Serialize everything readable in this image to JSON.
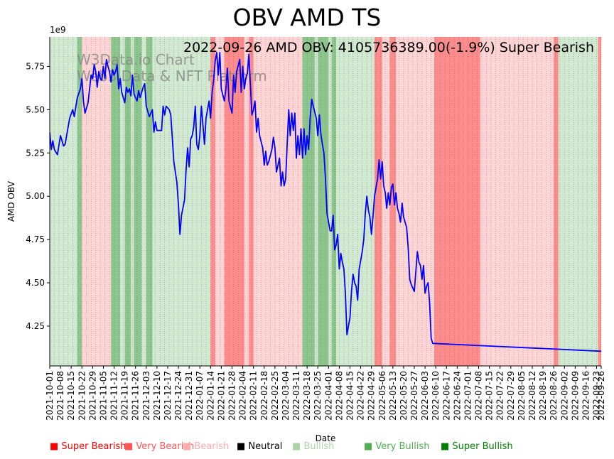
{
  "chart_data": {
    "type": "line",
    "title": "OBV AMD TS",
    "annotation": "2022-09-26 AMD OBV: 4105736389.00(-1.9%) Super Bearish",
    "watermark": [
      "W3Data.io Chart",
      "Web3 Data & NFT Platform"
    ],
    "xlabel": "Date",
    "ylabel": "AMD OBV",
    "y_multiplier": "1e9",
    "ylim": [
      4.02,
      5.92
    ],
    "xlim": [
      0,
      360
    ],
    "yticks": [
      "4.25",
      "4.50",
      "4.75",
      "5.00",
      "5.25",
      "5.50",
      "5.75"
    ],
    "ytick_values": [
      4.25,
      4.5,
      4.75,
      5.0,
      5.25,
      5.5,
      5.75
    ],
    "xtick_labels": [
      "2021-10-01",
      "2021-10-08",
      "2021-10-15",
      "2021-10-22",
      "2021-10-29",
      "2021-11-05",
      "2021-11-12",
      "2021-11-19",
      "2021-11-26",
      "2021-12-03",
      "2021-12-10",
      "2021-12-17",
      "2021-12-24",
      "2021-12-31",
      "2022-01-07",
      "2022-01-14",
      "2022-01-21",
      "2022-01-28",
      "2022-02-04",
      "2022-02-11",
      "2022-02-18",
      "2022-02-25",
      "2022-03-04",
      "2022-03-11",
      "2022-03-18",
      "2022-03-25",
      "2022-04-01",
      "2022-04-08",
      "2022-04-15",
      "2022-04-22",
      "2022-04-29",
      "2022-05-06",
      "2022-05-13",
      "2022-05-20",
      "2022-05-27",
      "2022-06-03",
      "2022-06-10",
      "2022-06-17",
      "2022-06-24",
      "2022-07-01",
      "2022-07-08",
      "2022-07-15",
      "2022-07-22",
      "2022-07-29",
      "2022-08-05",
      "2022-08-12",
      "2022-08-19",
      "2022-08-26",
      "2022-09-02",
      "2022-09-09",
      "2022-09-16",
      "2022-09-23",
      "2022-09-26"
    ],
    "xtick_days": [
      0,
      7,
      14,
      21,
      28,
      35,
      42,
      49,
      56,
      63,
      70,
      77,
      84,
      91,
      98,
      105,
      112,
      119,
      126,
      133,
      140,
      147,
      154,
      161,
      168,
      175,
      182,
      189,
      196,
      203,
      210,
      217,
      224,
      231,
      238,
      245,
      252,
      259,
      266,
      273,
      280,
      287,
      294,
      301,
      308,
      315,
      322,
      329,
      336,
      343,
      350,
      357,
      360
    ],
    "series": [
      {
        "name": "AMD OBV",
        "color": "#0000ff",
        "points": [
          [
            0,
            5.37
          ],
          [
            1,
            5.27
          ],
          [
            2,
            5.32
          ],
          [
            3,
            5.27
          ],
          [
            5,
            5.24
          ],
          [
            7,
            5.35
          ],
          [
            9,
            5.29
          ],
          [
            10,
            5.3
          ],
          [
            11,
            5.35
          ],
          [
            13,
            5.45
          ],
          [
            15,
            5.5
          ],
          [
            16,
            5.46
          ],
          [
            18,
            5.57
          ],
          [
            20,
            5.62
          ],
          [
            21,
            5.68
          ],
          [
            22,
            5.55
          ],
          [
            23,
            5.48
          ],
          [
            25,
            5.54
          ],
          [
            27,
            5.7
          ],
          [
            28,
            5.68
          ],
          [
            29,
            5.76
          ],
          [
            30,
            5.72
          ],
          [
            31,
            5.63
          ],
          [
            32,
            5.72
          ],
          [
            33,
            5.68
          ],
          [
            34,
            5.67
          ],
          [
            35,
            5.75
          ],
          [
            36,
            5.68
          ],
          [
            37,
            5.79
          ],
          [
            38,
            5.75
          ],
          [
            39,
            5.72
          ],
          [
            40,
            5.66
          ],
          [
            41,
            5.73
          ],
          [
            42,
            5.7
          ],
          [
            43,
            5.72
          ],
          [
            44,
            5.76
          ],
          [
            45,
            5.62
          ],
          [
            46,
            5.68
          ],
          [
            47,
            5.6
          ],
          [
            49,
            5.54
          ],
          [
            50,
            5.63
          ],
          [
            51,
            5.6
          ],
          [
            52,
            5.62
          ],
          [
            53,
            5.58
          ],
          [
            54,
            5.7
          ],
          [
            55,
            5.59
          ],
          [
            56,
            5.57
          ],
          [
            57,
            5.55
          ],
          [
            58,
            5.61
          ],
          [
            59,
            5.57
          ],
          [
            61,
            5.63
          ],
          [
            62,
            5.65
          ],
          [
            63,
            5.52
          ],
          [
            65,
            5.46
          ],
          [
            66,
            5.48
          ],
          [
            67,
            5.5
          ],
          [
            68,
            5.37
          ],
          [
            69,
            5.43
          ],
          [
            70,
            5.38
          ],
          [
            73,
            5.38
          ],
          [
            74,
            5.52
          ],
          [
            75,
            5.47
          ],
          [
            76,
            5.52
          ],
          [
            78,
            5.5
          ],
          [
            79,
            5.47
          ],
          [
            81,
            5.2
          ],
          [
            83,
            5.08
          ],
          [
            84,
            4.95
          ],
          [
            85,
            4.78
          ],
          [
            86,
            4.89
          ],
          [
            88,
            4.98
          ],
          [
            89,
            5.15
          ],
          [
            90,
            5.28
          ],
          [
            91,
            5.17
          ],
          [
            92,
            5.33
          ],
          [
            93,
            5.35
          ],
          [
            94,
            5.4
          ],
          [
            95,
            5.52
          ],
          [
            96,
            5.3
          ],
          [
            97,
            5.27
          ],
          [
            98,
            5.35
          ],
          [
            99,
            5.52
          ],
          [
            101,
            5.3
          ],
          [
            102,
            5.45
          ],
          [
            104,
            5.55
          ],
          [
            105,
            5.45
          ],
          [
            106,
            5.6
          ],
          [
            107,
            5.67
          ],
          [
            108,
            5.78
          ],
          [
            109,
            5.83
          ],
          [
            110,
            5.7
          ],
          [
            111,
            5.83
          ],
          [
            112,
            5.62
          ],
          [
            114,
            5.55
          ],
          [
            115,
            5.62
          ],
          [
            116,
            5.74
          ],
          [
            117,
            5.55
          ],
          [
            119,
            5.48
          ],
          [
            120,
            5.7
          ],
          [
            121,
            5.6
          ],
          [
            122,
            5.72
          ],
          [
            124,
            5.79
          ],
          [
            125,
            5.6
          ],
          [
            126,
            5.75
          ],
          [
            127,
            5.62
          ],
          [
            128,
            5.68
          ],
          [
            129,
            5.71
          ],
          [
            130,
            5.82
          ],
          [
            132,
            5.47
          ],
          [
            133,
            5.5
          ],
          [
            134,
            5.55
          ],
          [
            135,
            5.37
          ],
          [
            136,
            5.45
          ],
          [
            137,
            5.35
          ],
          [
            139,
            5.28
          ],
          [
            140,
            5.18
          ],
          [
            141,
            5.26
          ],
          [
            142,
            5.18
          ],
          [
            143,
            5.2
          ],
          [
            145,
            5.27
          ],
          [
            146,
            5.34
          ],
          [
            147,
            5.28
          ],
          [
            148,
            5.14
          ],
          [
            149,
            5.18
          ],
          [
            150,
            5.22
          ],
          [
            151,
            5.06
          ],
          [
            152,
            5.14
          ],
          [
            153,
            5.06
          ],
          [
            154,
            5.1
          ],
          [
            155,
            5.3
          ],
          [
            156,
            5.5
          ],
          [
            157,
            5.35
          ],
          [
            158,
            5.48
          ],
          [
            159,
            5.38
          ],
          [
            160,
            5.48
          ],
          [
            161,
            5.22
          ],
          [
            162,
            5.35
          ],
          [
            163,
            5.24
          ],
          [
            164,
            5.39
          ],
          [
            165,
            5.22
          ],
          [
            166,
            5.39
          ],
          [
            167,
            5.24
          ],
          [
            168,
            5.35
          ],
          [
            169,
            5.27
          ],
          [
            170,
            5.45
          ],
          [
            171,
            5.56
          ],
          [
            172,
            5.52
          ],
          [
            174,
            5.45
          ],
          [
            175,
            5.35
          ],
          [
            176,
            5.47
          ],
          [
            177,
            5.36
          ],
          [
            178,
            5.3
          ],
          [
            179,
            5.25
          ],
          [
            180,
            5.1
          ],
          [
            181,
            4.9
          ],
          [
            183,
            4.8
          ],
          [
            184,
            4.8
          ],
          [
            185,
            4.89
          ],
          [
            186,
            4.69
          ],
          [
            187,
            4.72
          ],
          [
            188,
            4.78
          ],
          [
            189,
            4.58
          ],
          [
            190,
            4.67
          ],
          [
            191,
            4.62
          ],
          [
            192,
            4.58
          ],
          [
            193,
            4.44
          ],
          [
            194,
            4.2
          ],
          [
            195,
            4.25
          ],
          [
            196,
            4.3
          ],
          [
            197,
            4.45
          ],
          [
            198,
            4.55
          ],
          [
            199,
            4.5
          ],
          [
            200,
            4.48
          ],
          [
            201,
            4.4
          ],
          [
            202,
            4.58
          ],
          [
            203,
            4.63
          ],
          [
            204,
            4.68
          ],
          [
            205,
            4.75
          ],
          [
            206,
            4.9
          ],
          [
            207,
            5.0
          ],
          [
            208,
            4.92
          ],
          [
            209,
            4.88
          ],
          [
            210,
            4.78
          ],
          [
            211,
            4.88
          ],
          [
            212,
            5.0
          ],
          [
            213,
            5.05
          ],
          [
            214,
            5.1
          ],
          [
            215,
            5.21
          ],
          [
            216,
            5.1
          ],
          [
            217,
            5.2
          ],
          [
            218,
            5.06
          ],
          [
            219,
            5.02
          ],
          [
            220,
            4.93
          ],
          [
            221,
            5.02
          ],
          [
            222,
            4.95
          ],
          [
            223,
            5.05
          ],
          [
            224,
            5.07
          ],
          [
            225,
            4.95
          ],
          [
            226,
            5.02
          ],
          [
            227,
            4.93
          ],
          [
            228,
            4.9
          ],
          [
            229,
            4.85
          ],
          [
            230,
            4.96
          ],
          [
            231,
            4.88
          ],
          [
            233,
            4.82
          ],
          [
            234,
            4.7
          ],
          [
            235,
            4.52
          ],
          [
            236,
            4.49
          ],
          [
            238,
            4.45
          ],
          [
            240,
            4.68
          ],
          [
            241,
            4.62
          ],
          [
            242,
            4.6
          ],
          [
            243,
            4.52
          ],
          [
            244,
            4.6
          ],
          [
            245,
            4.44
          ],
          [
            246,
            4.48
          ],
          [
            247,
            4.5
          ],
          [
            248,
            4.38
          ],
          [
            249,
            4.18
          ],
          [
            250,
            4.15
          ],
          [
            360,
            4.105
          ]
        ]
      }
    ],
    "regimes": [
      {
        "label": "Super Bearish",
        "color": "#ff0000"
      },
      {
        "label": "Very Bearish",
        "color": "#ff5555"
      },
      {
        "label": "Bearish",
        "color": "#ffaaaa"
      },
      {
        "label": "Neutral",
        "color": "#000000"
      },
      {
        "label": "Bullish",
        "color": "#aad4a5"
      },
      {
        "label": "Very Bullish",
        "color": "#4caf50"
      },
      {
        "label": "Super Bullish",
        "color": "#008000"
      }
    ],
    "background_bands": [
      {
        "from": 0,
        "to": 18,
        "regime": "Bullish"
      },
      {
        "from": 18,
        "to": 21,
        "regime": "Very Bullish"
      },
      {
        "from": 21,
        "to": 40,
        "regime": "Bearish"
      },
      {
        "from": 40,
        "to": 46,
        "regime": "Very Bullish"
      },
      {
        "from": 46,
        "to": 49,
        "regime": "Bullish"
      },
      {
        "from": 49,
        "to": 53,
        "regime": "Very Bullish"
      },
      {
        "from": 53,
        "to": 55,
        "regime": "Bullish"
      },
      {
        "from": 55,
        "to": 60,
        "regime": "Very Bullish"
      },
      {
        "from": 60,
        "to": 63,
        "regime": "Bullish"
      },
      {
        "from": 63,
        "to": 67,
        "regime": "Very Bullish"
      },
      {
        "from": 67,
        "to": 105,
        "regime": "Bullish"
      },
      {
        "from": 105,
        "to": 108,
        "regime": "Very Bearish"
      },
      {
        "from": 108,
        "to": 114,
        "regime": "Bearish"
      },
      {
        "from": 114,
        "to": 127,
        "regime": "Very Bearish"
      },
      {
        "from": 127,
        "to": 130,
        "regime": "Bearish"
      },
      {
        "from": 130,
        "to": 133,
        "regime": "Very Bearish"
      },
      {
        "from": 133,
        "to": 165,
        "regime": "Bearish"
      },
      {
        "from": 165,
        "to": 173,
        "regime": "Very Bullish"
      },
      {
        "from": 173,
        "to": 175,
        "regime": "Bullish"
      },
      {
        "from": 175,
        "to": 182,
        "regime": "Very Bullish"
      },
      {
        "from": 182,
        "to": 184,
        "regime": "Bullish"
      },
      {
        "from": 184,
        "to": 187,
        "regime": "Very Bullish"
      },
      {
        "from": 187,
        "to": 212,
        "regime": "Bullish"
      },
      {
        "from": 212,
        "to": 217,
        "regime": "Very Bearish"
      },
      {
        "from": 217,
        "to": 222,
        "regime": "Bearish"
      },
      {
        "from": 222,
        "to": 226,
        "regime": "Very Bearish"
      },
      {
        "from": 226,
        "to": 251,
        "regime": "Bearish"
      },
      {
        "from": 251,
        "to": 271,
        "regime": "Very Bearish"
      },
      {
        "from": 271,
        "to": 281,
        "regime": "Very Bearish"
      },
      {
        "from": 281,
        "to": 290,
        "regime": "Bearish"
      },
      {
        "from": 290,
        "to": 329,
        "regime": "Bearish"
      },
      {
        "from": 329,
        "to": 332,
        "regime": "Very Bearish"
      },
      {
        "from": 332,
        "to": 358,
        "regime": "Bullish"
      },
      {
        "from": 358,
        "to": 361,
        "regime": "Very Bearish"
      }
    ],
    "grid": "vertical dotted"
  }
}
